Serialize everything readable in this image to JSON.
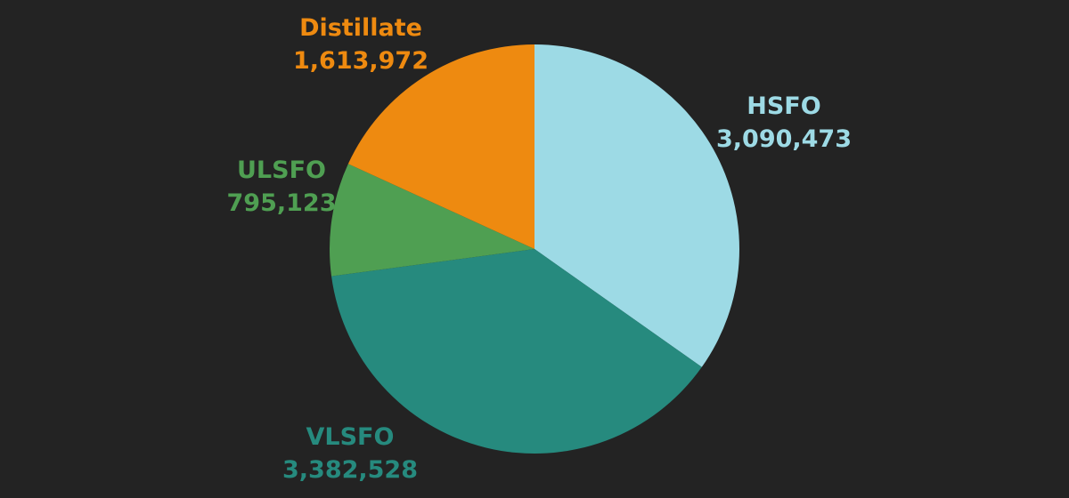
{
  "chart_data": {
    "type": "pie",
    "title": "",
    "slices": [
      {
        "name": "HSFO",
        "value": 3090473,
        "value_label": "3,090,473",
        "color": "#9DDAE5"
      },
      {
        "name": "VLSFO",
        "value": 3382528,
        "value_label": "3,382,528",
        "color": "#268A7E"
      },
      {
        "name": "ULSFO",
        "value": 795123,
        "value_label": "795,123",
        "color": "#4F9F52"
      },
      {
        "name": "Distillate",
        "value": 1613972,
        "value_label": "1,613,972",
        "color": "#EE8A10"
      }
    ],
    "start": "top",
    "direction": "clockwise",
    "legend": "none",
    "background_color": "#232323"
  }
}
